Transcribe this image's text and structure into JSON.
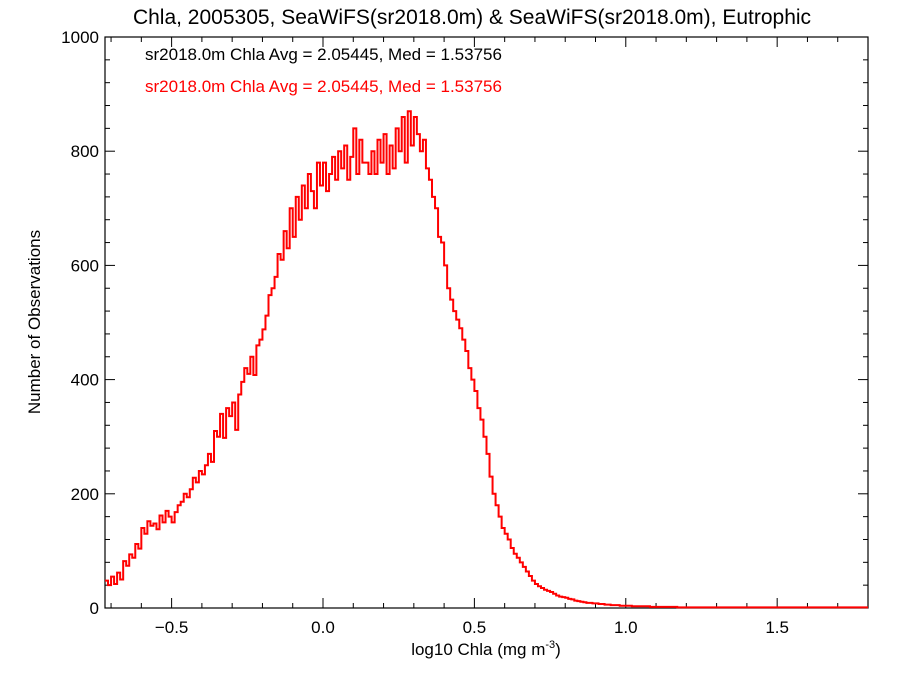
{
  "chart_data": {
    "type": "histogram",
    "title": "Chla, 2005305, SeaWiFS(sr2018.0m) & SeaWiFS(sr2018.0m), Eutrophic",
    "xlabel": "log10 Chla (mg m",
    "xlabel_sup": "-3",
    "xlabel_suffix": ")",
    "ylabel": "Number of Observations",
    "xlim": [
      -0.72,
      1.8
    ],
    "ylim": [
      0,
      1000
    ],
    "xticks": [
      -0.5,
      0.0,
      0.5,
      1.0,
      1.5
    ],
    "xtick_labels": [
      "−0.5",
      "0.0",
      "0.5",
      "1.0",
      "1.5"
    ],
    "yticks": [
      0,
      200,
      400,
      600,
      800,
      1000
    ],
    "ytick_labels": [
      "0",
      "200",
      "400",
      "600",
      "800",
      "1000"
    ],
    "bin_width": 0.01,
    "bin_start": -0.72,
    "grid": false,
    "annotations": [
      {
        "text": "sr2018.0m Chla Avg = 2.05445, Med = 1.53756",
        "color": "#000000"
      },
      {
        "text": "sr2018.0m Chla Avg = 2.05445, Med = 1.53756",
        "color": "#ff0000"
      }
    ],
    "series": [
      {
        "color": "#ff0000",
        "values": [
          48,
          40,
          55,
          42,
          62,
          50,
          82,
          74,
          94,
          88,
          112,
          104,
          140,
          130,
          152,
          144,
          148,
          138,
          162,
          150,
          170,
          160,
          150,
          168,
          180,
          186,
          200,
          194,
          208,
          228,
          220,
          240,
          234,
          250,
          270,
          256,
          310,
          300,
          340,
          298,
          350,
          336,
          360,
          312,
          374,
          396,
          420,
          410,
          440,
          408,
          460,
          470,
          488,
          512,
          548,
          560,
          580,
          620,
          610,
          660,
          630,
          700,
          650,
          720,
          680,
          740,
          700,
          760,
          730,
          700,
          780,
          740,
          780,
          730,
          760,
          790,
          750,
          800,
          770,
          810,
          750,
          790,
          840,
          760,
          820,
          780,
          780,
          760,
          800,
          760,
          820,
          780,
          830,
          760,
          810,
          770,
          840,
          800,
          860,
          780,
          870,
          810,
          860,
          830,
          800,
          820,
          770,
          750,
          720,
          700,
          650,
          640,
          600,
          560,
          540,
          520,
          505,
          490,
          470,
          450,
          420,
          400,
          380,
          350,
          330,
          300,
          270,
          230,
          200,
          180,
          160,
          140,
          130,
          120,
          105,
          95,
          88,
          80,
          72,
          64,
          56,
          48,
          42,
          38,
          35,
          32,
          30,
          28,
          25,
          22,
          20,
          19,
          18,
          16,
          15,
          13,
          12,
          11,
          10,
          9,
          9,
          8,
          8,
          7,
          7,
          6,
          6,
          5,
          5,
          5,
          4,
          4,
          4,
          4,
          3,
          3,
          3,
          3,
          3,
          3,
          2,
          2,
          2,
          2,
          2,
          2,
          2,
          2,
          2,
          1,
          1,
          1,
          1,
          1,
          1,
          1,
          1,
          1,
          1,
          1,
          1,
          1,
          1,
          1,
          1,
          1,
          1,
          1,
          1,
          1,
          1,
          1,
          1,
          1,
          1,
          1,
          1,
          1,
          1,
          1,
          1,
          1,
          1,
          1,
          1,
          1,
          1,
          1,
          1,
          1,
          1,
          1,
          1,
          1,
          1,
          1,
          1,
          1,
          1,
          1,
          1,
          1,
          1,
          1,
          1,
          1,
          1,
          1,
          1,
          1,
          1,
          1
        ]
      }
    ]
  }
}
